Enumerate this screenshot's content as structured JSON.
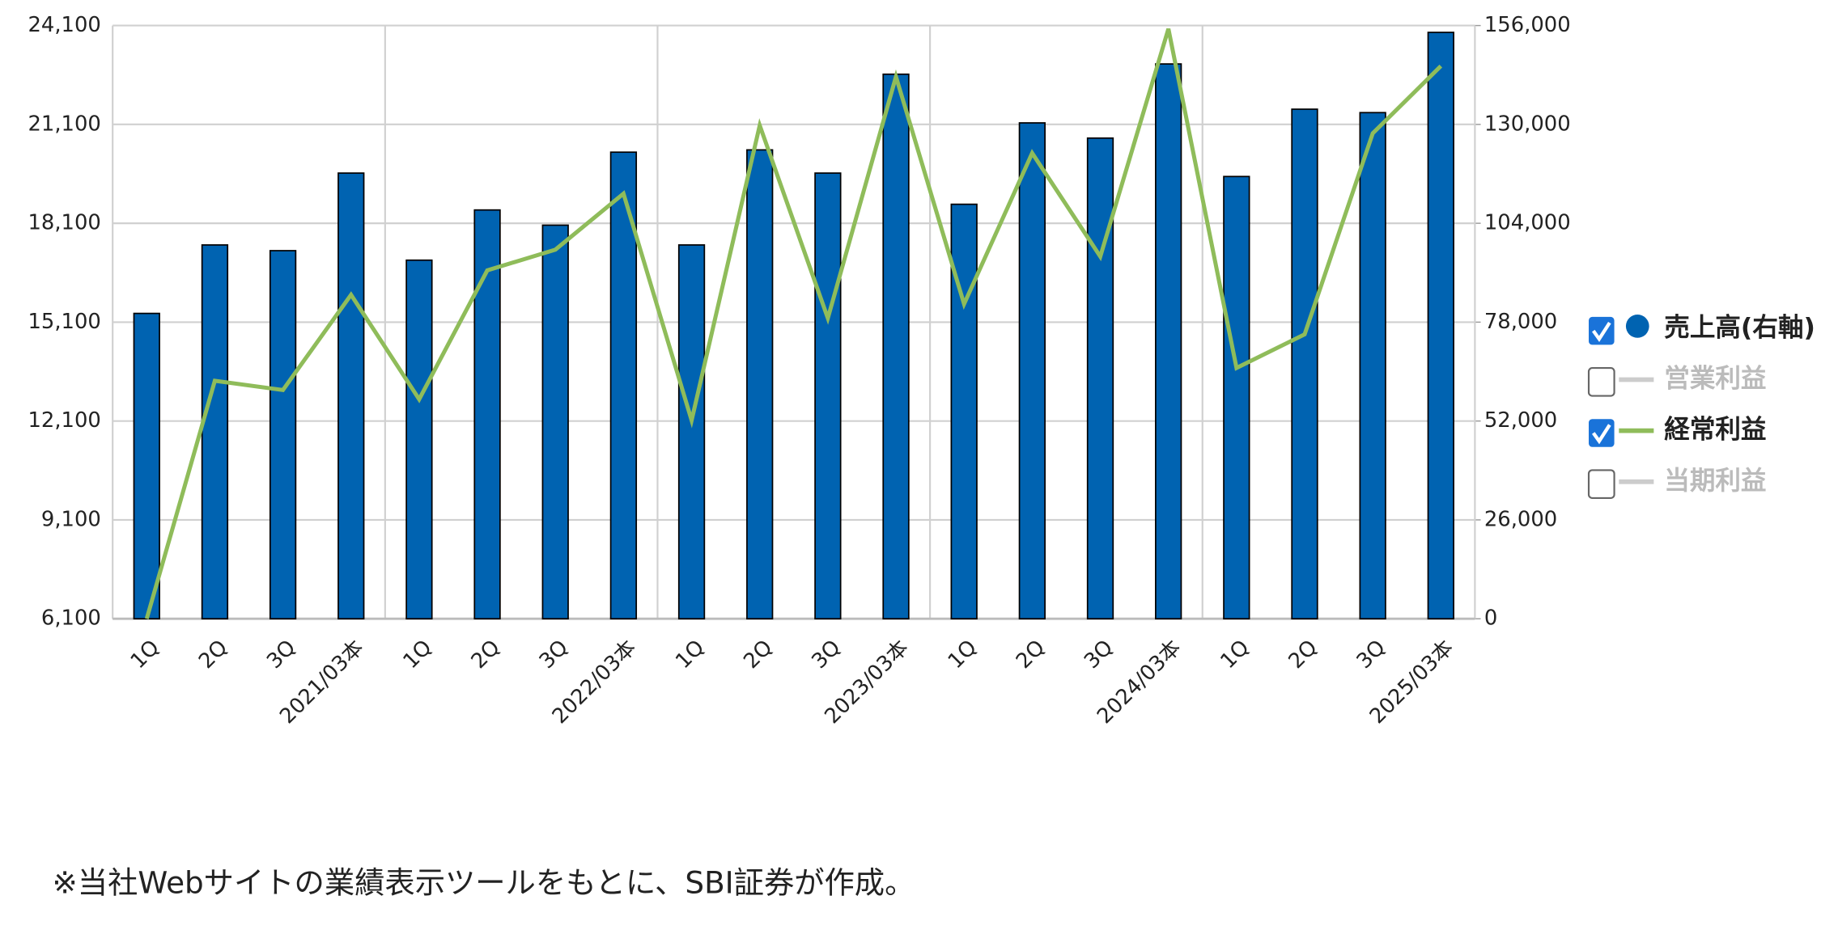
{
  "chart_data": {
    "type": "bar",
    "categories": [
      "1Q",
      "2Q",
      "3Q",
      "2021/03本",
      "1Q",
      "2Q",
      "3Q",
      "2022/03本",
      "1Q",
      "2Q",
      "3Q",
      "2023/03本",
      "1Q",
      "2Q",
      "3Q",
      "2024/03本",
      "1Q",
      "2Q",
      "3Q",
      "2025/03本"
    ],
    "series": [
      {
        "name": "売上高(右軸)",
        "type": "bar",
        "axis": "y2",
        "color": "#0063b1",
        "visible": true,
        "values": [
          80300,
          98300,
          96800,
          117200,
          94300,
          107500,
          103500,
          122700,
          98300,
          123300,
          117200,
          143200,
          109000,
          130400,
          126400,
          145900,
          116300,
          134000,
          133100,
          154200
        ]
      },
      {
        "name": "営業利益",
        "visible": false
      },
      {
        "name": "経常利益",
        "type": "line",
        "axis": "y",
        "color": "#8fbc5a",
        "visible": true,
        "values": [
          6100,
          13320,
          13040,
          15930,
          12760,
          16670,
          17300,
          19000,
          12120,
          21070,
          15220,
          22550,
          15650,
          20230,
          17090,
          24000,
          13710,
          14730,
          20830,
          22870
        ]
      },
      {
        "name": "当期利益",
        "visible": false
      }
    ],
    "ylim": [
      6100,
      24100
    ],
    "yticks": [
      {
        "value": 6100,
        "label": "6,100"
      },
      {
        "value": 9100,
        "label": "9,100"
      },
      {
        "value": 12100,
        "label": "12,100"
      },
      {
        "value": 15100,
        "label": "15,100"
      },
      {
        "value": 18100,
        "label": "18,100"
      },
      {
        "value": 21100,
        "label": "21,100"
      },
      {
        "value": 24100,
        "label": "24,100"
      }
    ],
    "y2lim": [
      0,
      156000
    ],
    "y2ticks": [
      0,
      {
        "value": 26000,
        "label": "26,000"
      },
      {
        "value": 52000,
        "label": "52,000"
      },
      {
        "value": 78000,
        "label": "78,000"
      },
      {
        "value": 104000,
        "label": "104,000"
      },
      {
        "value": 130000,
        "label": "130,000"
      },
      {
        "value": 156000,
        "label": "156,000"
      }
    ],
    "grid": true,
    "legend": "right",
    "note": "※当社Webサイトの業績表示ツールをもとに、SBI証券が作成。"
  }
}
